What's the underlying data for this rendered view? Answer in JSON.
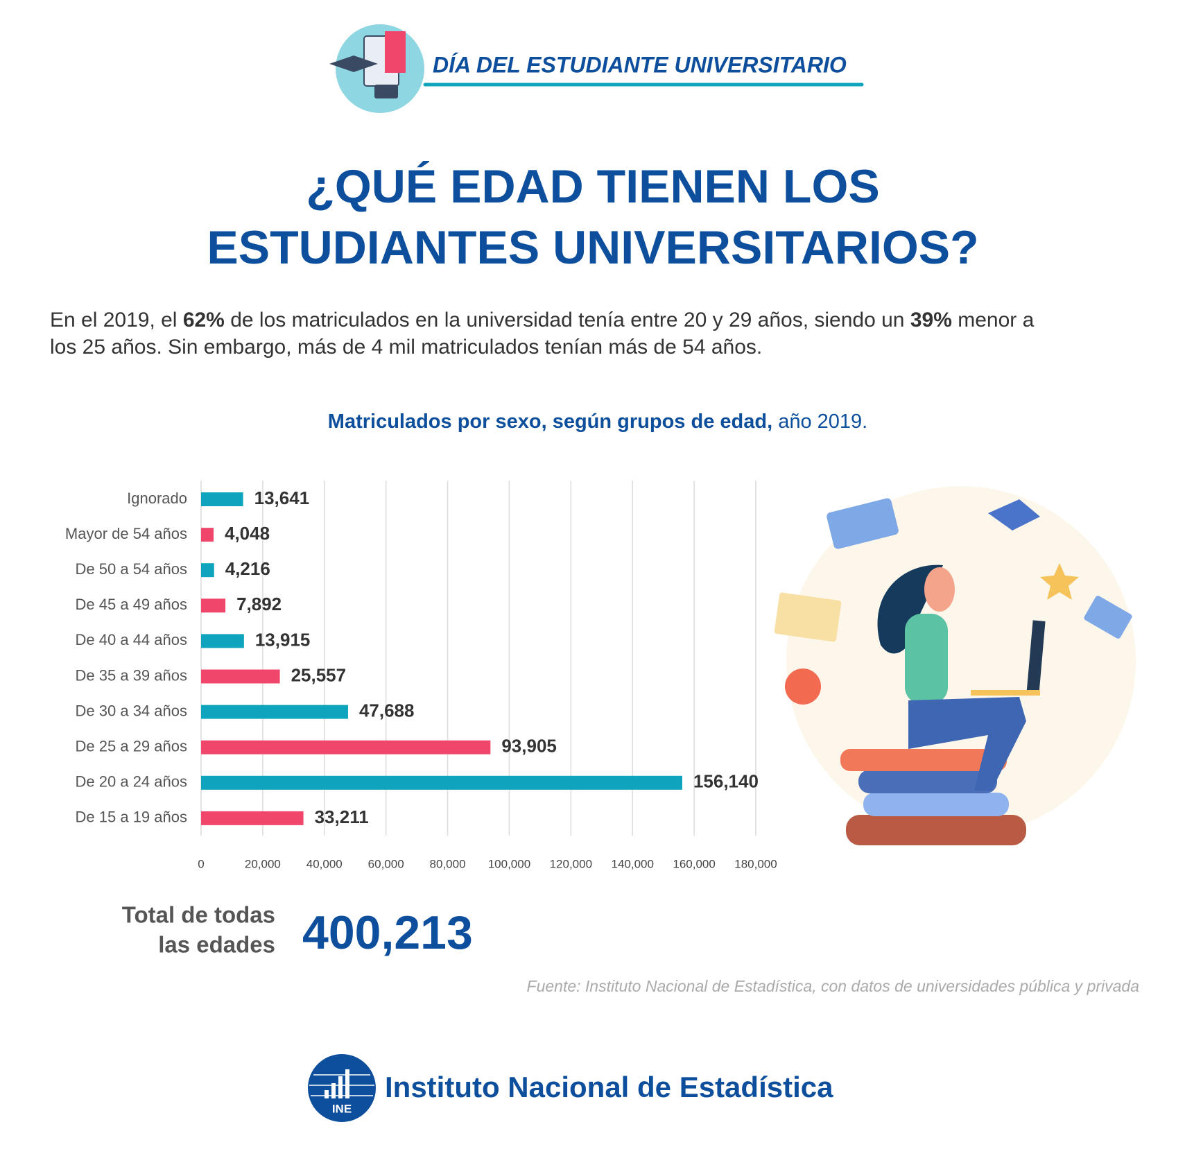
{
  "header": {
    "title": "DÍA DEL ESTUDIANTE UNIVERSITARIO"
  },
  "title": "¿QUÉ EDAD TIENEN LOS ESTUDIANTES UNIVERSITARIOS?",
  "intro": [
    "En el 2019, el ",
    "62%",
    " de los matriculados en la universidad tenía entre 20 y 29 años, siendo un ",
    "39%",
    " menor a",
    "los 25 años. Sin embargo, más de 4 mil matriculados tenían más de 54 años."
  ],
  "chart_data": {
    "type": "hbar",
    "title": "Matriculados por sexo, según grupos de edad,",
    "subtitle": "año 2019.",
    "categories": [
      "Ignorado",
      "Mayor de 54 años",
      "De 50 a 54 años",
      "De 45 a 49 años",
      "De 40 a 44 años",
      "De 35 a 39 años",
      "De 30 a 34 años",
      "De 25 a 29 años",
      "De 20 a 24 años",
      "De 15 a 19 años"
    ],
    "values": [
      13641,
      4048,
      4216,
      7892,
      13915,
      25557,
      47688,
      93905,
      156140,
      33211
    ],
    "value_labels": [
      "13,641",
      "4,048",
      "4,216",
      "7,892",
      "13,915",
      "25,557",
      "47,688",
      "93,905",
      "156,140",
      "33,211"
    ],
    "colors": [
      "#0ea4bd",
      "#f0466b",
      "#0ea4bd",
      "#f0466b",
      "#0ea4bd",
      "#f0466b",
      "#0ea4bd",
      "#f0466b",
      "#0ea4bd",
      "#f0466b"
    ],
    "xlim": [
      0,
      180000
    ],
    "xticks": [
      0,
      {
        "value": 20000,
        "label": "20,000"
      },
      {
        "value": 40000,
        "label": "40,000"
      },
      {
        "value": 60000,
        "label": "60,000"
      },
      {
        "value": 80000,
        "label": "80,000"
      },
      {
        "value": 100000,
        "label": "100,000"
      },
      {
        "value": 120000,
        "label": "120,000"
      },
      {
        "value": 140000,
        "label": "140,000"
      },
      {
        "value": 160000,
        "label": "160,000"
      },
      {
        "value": 180000,
        "label": "180,000"
      }
    ],
    "grid": true
  },
  "total": {
    "label": [
      "Total de todas",
      "las edades"
    ],
    "value": "400,213"
  },
  "source": "Fuente: Instituto Nacional de Estadística, con datos de universidades pública y privada",
  "footer": {
    "name": "Instituto Nacional de Estadística",
    "logo": "INE"
  }
}
